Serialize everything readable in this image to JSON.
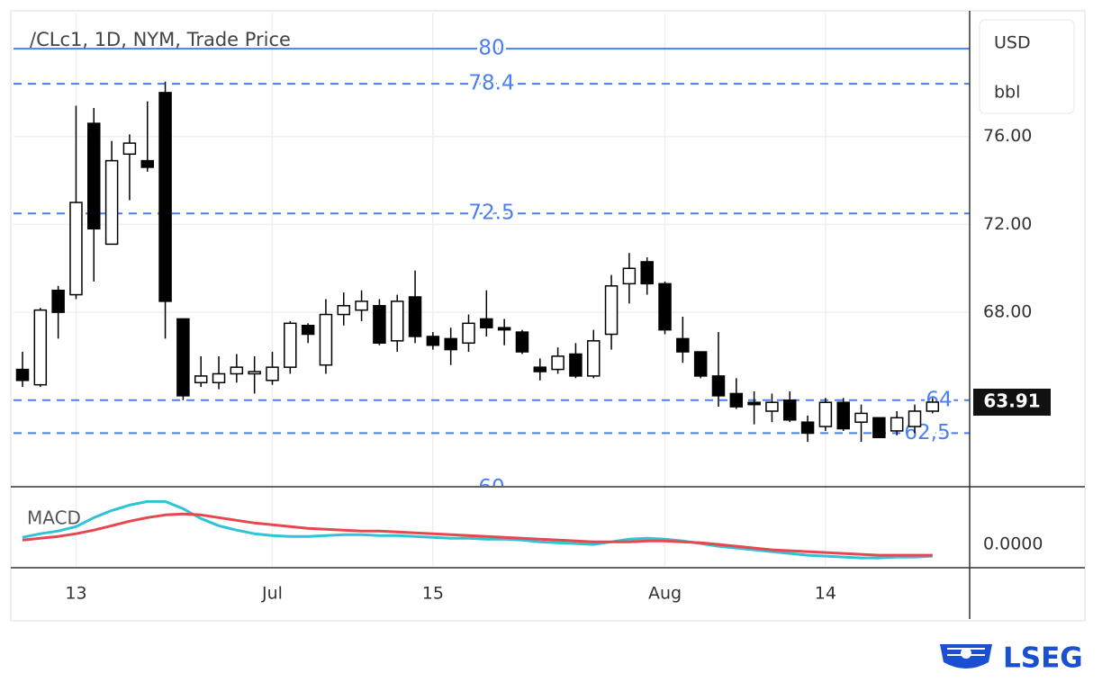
{
  "chart_data": [
    {
      "type": "candlestick",
      "title": "/CLc1, 1D, NYM, Trade Price",
      "units": [
        "USD",
        "bbl"
      ],
      "categories": [
        null,
        null,
        null,
        "13",
        null,
        null,
        null,
        null,
        null,
        null,
        null,
        null,
        null,
        null,
        "Jul",
        null,
        null,
        null,
        null,
        null,
        null,
        null,
        null,
        "15",
        null,
        null,
        null,
        null,
        null,
        null,
        null,
        null,
        null,
        null,
        null,
        null,
        "Aug",
        null,
        null,
        null,
        null,
        null,
        null,
        null,
        null,
        "14",
        null,
        null,
        null,
        null,
        null,
        null
      ],
      "open": [
        65.4,
        64.7,
        69.0,
        68.8,
        76.6,
        71.1,
        75.2,
        74.9,
        78.0,
        67.7,
        64.8,
        64.8,
        65.2,
        65.2,
        64.9,
        65.5,
        67.4,
        65.6,
        67.9,
        68.1,
        68.3,
        66.7,
        68.7,
        66.9,
        66.8,
        66.6,
        67.7,
        67.3,
        67.1,
        65.5,
        65.4,
        66.1,
        65.1,
        67.0,
        69.3,
        70.3,
        69.3,
        66.8,
        66.2,
        65.1,
        64.3,
        63.9,
        63.5,
        64.0,
        63.0,
        62.8,
        63.9,
        63.0,
        63.2,
        62.6,
        62.8,
        63.5
      ],
      "high": [
        66.2,
        68.2,
        69.2,
        77.4,
        77.3,
        75.8,
        76.1,
        77.6,
        78.5,
        67.7,
        66.0,
        66.0,
        66.1,
        66.0,
        66.2,
        67.6,
        67.5,
        68.6,
        68.9,
        69.0,
        68.6,
        68.8,
        69.9,
        67.1,
        67.3,
        67.9,
        69.0,
        67.7,
        67.2,
        65.9,
        66.4,
        66.6,
        67.2,
        69.7,
        70.7,
        70.5,
        69.4,
        67.8,
        66.2,
        67.1,
        65.0,
        64.4,
        64.3,
        64.4,
        63.3,
        64.1,
        64.1,
        63.8,
        63.2,
        63.5,
        63.8,
        64.1
      ],
      "low": [
        64.6,
        64.6,
        66.8,
        68.6,
        69.4,
        71.1,
        73.1,
        74.4,
        66.8,
        64.0,
        64.6,
        64.5,
        64.8,
        64.3,
        64.7,
        65.2,
        66.6,
        65.2,
        67.4,
        67.6,
        66.5,
        66.2,
        66.6,
        66.3,
        65.6,
        66.2,
        66.9,
        66.5,
        66.1,
        64.9,
        65.2,
        65.0,
        65.0,
        66.3,
        68.4,
        68.8,
        67.0,
        65.7,
        65.0,
        63.7,
        63.6,
        62.9,
        63.0,
        63.0,
        62.1,
        62.6,
        62.6,
        62.1,
        62.3,
        62.4,
        62.5,
        63.4
      ],
      "close": [
        64.9,
        68.1,
        68.0,
        73.0,
        71.8,
        74.9,
        75.7,
        74.6,
        68.5,
        64.2,
        65.1,
        65.2,
        65.5,
        65.3,
        65.5,
        67.5,
        67.0,
        67.9,
        68.3,
        68.5,
        66.6,
        68.5,
        66.9,
        66.5,
        66.3,
        67.5,
        67.3,
        67.2,
        66.2,
        65.3,
        66.0,
        65.1,
        66.7,
        69.2,
        70.0,
        69.3,
        67.2,
        66.2,
        65.1,
        64.2,
        63.7,
        63.8,
        63.9,
        63.1,
        62.5,
        63.9,
        62.7,
        63.4,
        62.3,
        63.2,
        63.5,
        63.91
      ],
      "up_color": "#ffffff",
      "down_color": "#000000",
      "ylim": [
        60.1,
        81.6
      ],
      "yticks": [
        {
          "value": 68,
          "label": "68.00"
        },
        {
          "value": 72,
          "label": "72.00"
        },
        {
          "value": 76,
          "label": "76.00"
        }
      ],
      "solid_levels": [
        80
      ],
      "dashed_levels": [
        78.4,
        72.5,
        64,
        {
          "value": 62.5,
          "label": "62,5"
        },
        60
      ],
      "level_color": "#4a7ff2",
      "grid": true
    },
    {
      "type": "line",
      "label": "MACD",
      "series": [
        {
          "color": "#2ec4d6",
          "values": [
            0.32,
            0.48,
            0.6,
            0.8,
            1.2,
            1.52,
            1.76,
            1.92,
            1.92,
            1.6,
            1.16,
            0.84,
            0.64,
            0.48,
            0.4,
            0.36,
            0.36,
            0.4,
            0.44,
            0.44,
            0.4,
            0.4,
            0.36,
            0.32,
            0.28,
            0.28,
            0.24,
            0.24,
            0.2,
            0.12,
            0.08,
            0.04,
            0,
            0.12,
            0.24,
            0.28,
            0.24,
            0.16,
            0.04,
            -0.08,
            -0.16,
            -0.24,
            -0.32,
            -0.4,
            -0.48,
            -0.52,
            -0.56,
            -0.6,
            -0.6,
            -0.56,
            -0.56,
            -0.52
          ]
        },
        {
          "color": "#e8474f",
          "values": [
            0.2,
            0.28,
            0.36,
            0.48,
            0.64,
            0.84,
            1.04,
            1.2,
            1.32,
            1.36,
            1.32,
            1.2,
            1.08,
            0.96,
            0.88,
            0.8,
            0.72,
            0.68,
            0.64,
            0.6,
            0.6,
            0.56,
            0.52,
            0.48,
            0.44,
            0.4,
            0.36,
            0.32,
            0.28,
            0.24,
            0.2,
            0.16,
            0.12,
            0.12,
            0.12,
            0.16,
            0.16,
            0.12,
            0.08,
            0,
            -0.08,
            -0.16,
            -0.24,
            -0.28,
            -0.32,
            -0.36,
            -0.4,
            -0.44,
            -0.48,
            -0.48,
            -0.48,
            -0.48
          ]
        }
      ],
      "ylim": [
        -1,
        2.5
      ],
      "yticks": [
        {
          "value": 0,
          "label": "0.0000"
        }
      ]
    }
  ],
  "brand": "LSEG"
}
